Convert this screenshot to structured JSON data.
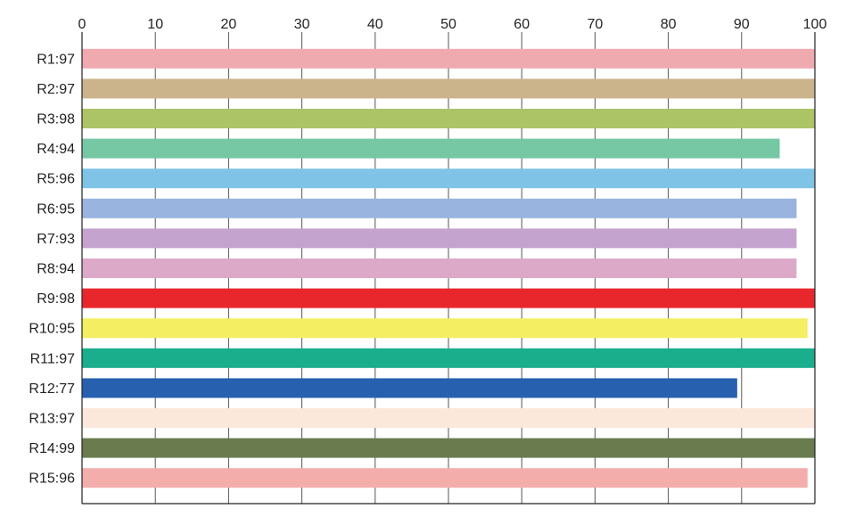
{
  "chart_data": {
    "type": "bar",
    "orientation": "horizontal",
    "title": "",
    "xlabel": "",
    "ylabel": "",
    "xlim": [
      0,
      100
    ],
    "x_ticks": [
      0,
      10,
      20,
      30,
      40,
      50,
      60,
      70,
      80,
      90,
      100
    ],
    "x_axis_position": "top",
    "grid": true,
    "categories": [
      "R1:97",
      "R2:97",
      "R3:98",
      "R4:94",
      "R5:96",
      "R6:95",
      "R7:93",
      "R8:94",
      "R9:98",
      "R10:95",
      "R11:97",
      "R12:77",
      "R13:97",
      "R14:99",
      "R15:96"
    ],
    "values": [
      100,
      100,
      100,
      95.2,
      100,
      97.5,
      97.5,
      97.5,
      100,
      99,
      100,
      89.4,
      100,
      100,
      99
    ],
    "colors": [
      "#efaab0",
      "#cbb38b",
      "#acc466",
      "#76c7a4",
      "#7fc4e7",
      "#98b4df",
      "#c4a3cf",
      "#dda9c9",
      "#e8272d",
      "#f4ee62",
      "#1aae8c",
      "#2860b0",
      "#fbe8da",
      "#6a7b4e",
      "#f3aeab"
    ]
  }
}
